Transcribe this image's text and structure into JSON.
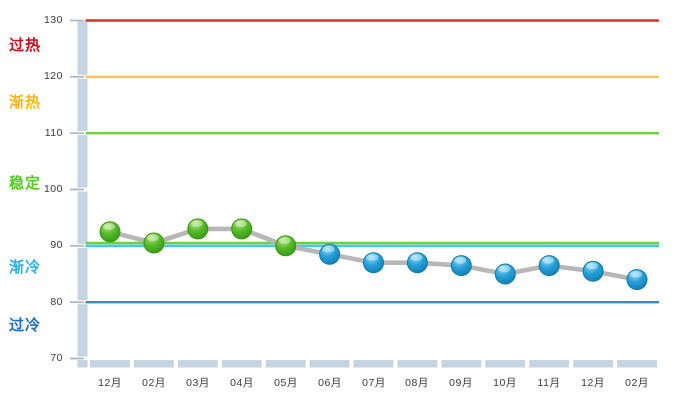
{
  "chart": {
    "background": "#ffffff",
    "axis_band_color": "#c6d3e1",
    "tick_mark_color": "#aeb9c6",
    "series_line_color": "#b7b7b7",
    "tick_label_color": "#3a3a3a"
  },
  "chart_data": {
    "type": "line",
    "title": "",
    "xlabel": "",
    "ylabel": "",
    "legend": "none",
    "grid": "off",
    "ylim": [
      70,
      130
    ],
    "yticks": [
      130,
      120,
      110,
      100,
      90,
      80,
      70
    ],
    "categories": [
      "12月",
      "02月",
      "03月",
      "04月",
      "05月",
      "06月",
      "07月",
      "08月",
      "09月",
      "10月",
      "11月",
      "12月",
      "02月"
    ],
    "series": [
      {
        "name": "",
        "values": [
          92.5,
          90.5,
          93,
          93,
          90,
          88.5,
          87,
          87,
          86.5,
          85,
          86.5,
          85.5,
          84
        ],
        "point_colors": [
          "green",
          "green",
          "green",
          "green",
          "green",
          "blue",
          "blue",
          "blue",
          "blue",
          "blue",
          "blue",
          "blue",
          "blue"
        ]
      }
    ],
    "thresholds": [
      {
        "value": 130,
        "color": "#d63030"
      },
      {
        "value": 120,
        "color": "#fcc257"
      },
      {
        "value": 110,
        "color": "#6bd141"
      },
      {
        "value": 90.5,
        "color": "#6bd141"
      },
      {
        "value": 90,
        "color": "#3fc9ea"
      },
      {
        "value": 80,
        "color": "#3d87c8"
      }
    ],
    "zones": [
      {
        "label": "过热",
        "color": "#c3111c",
        "center_value": 125.3
      },
      {
        "label": "渐热",
        "color": "#fcb813",
        "center_value": 115.2
      },
      {
        "label": "稳定",
        "color": "#52cc1f",
        "center_value": 100.8
      },
      {
        "label": "渐冷",
        "color": "#29b2e8",
        "center_value": 85.8
      },
      {
        "label": "过冷",
        "color": "#1a6fc4",
        "center_value": 75.6
      }
    ],
    "point_styles": {
      "green": {
        "top": "#b2e47c",
        "mid": "#54ba29",
        "bottom": "#2e8a10",
        "stroke": "#379410"
      },
      "blue": {
        "top": "#96dcf5",
        "mid": "#24a0d8",
        "bottom": "#0d6fa3",
        "stroke": "#1078ab"
      }
    }
  }
}
